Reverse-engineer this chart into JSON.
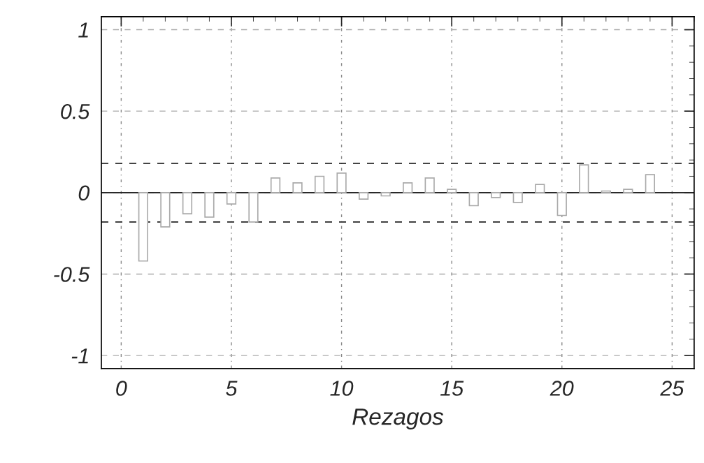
{
  "chart_data": {
    "type": "bar",
    "xlabel": "Rezagos",
    "x": [
      1,
      2,
      3,
      4,
      5,
      6,
      7,
      8,
      9,
      10,
      11,
      12,
      13,
      14,
      15,
      16,
      17,
      18,
      19,
      20,
      21,
      22,
      23,
      24
    ],
    "values": [
      -0.42,
      -0.21,
      -0.13,
      -0.15,
      -0.07,
      -0.18,
      0.09,
      0.06,
      0.1,
      0.12,
      -0.04,
      -0.02,
      0.06,
      0.09,
      0.02,
      -0.08,
      -0.03,
      -0.06,
      0.05,
      -0.14,
      0.17,
      0.01,
      0.02,
      0.11
    ],
    "color": "#ffffff",
    "xlim": [
      -0.9,
      26
    ],
    "xticks": [
      0,
      5,
      10,
      15,
      20,
      25
    ],
    "ylim": [
      -1.08,
      1.08
    ],
    "yticks": [
      {
        "value": -1,
        "label": "-1"
      },
      {
        "value": -0.5,
        "label": "-0.5"
      },
      0,
      0.5,
      1
    ],
    "grid": true,
    "legend": false,
    "ref_lines": [
      {
        "axis": "y",
        "value": 0.18,
        "line_style": "dashed",
        "color": "#222222"
      },
      {
        "axis": "y",
        "value": -0.18,
        "line_style": "dashed",
        "color": "#222222"
      },
      {
        "axis": "y",
        "value": 0,
        "line_style": "solid",
        "color": "#222222"
      }
    ]
  }
}
